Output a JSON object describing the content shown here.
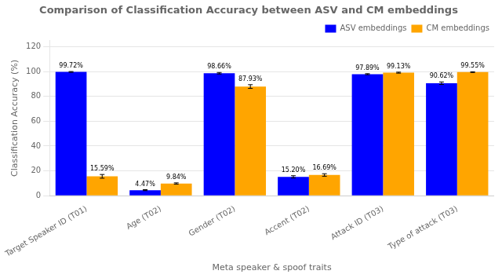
{
  "chart_data": {
    "type": "bar",
    "title": "Comparison of Classification Accuracy between ASV and CM embeddings",
    "xlabel": "Meta speaker & spoof traits",
    "ylabel": "Classification Accuracy (%)",
    "categories": [
      "Target Speaker ID (T01)",
      "Age (T02)",
      "Gender (T02)",
      "Accent (T02)",
      "Attack ID (T03)",
      "Type of attack (T03)"
    ],
    "series": [
      {
        "name": "ASV embeddings",
        "color": "#0000FF",
        "values": [
          99.72,
          4.47,
          98.66,
          15.2,
          97.89,
          90.62
        ],
        "errors": [
          0.3,
          0.4,
          0.6,
          0.9,
          0.4,
          1.0
        ],
        "value_labels": [
          "99.72%",
          "4.47%",
          "98.66%",
          "15.20%",
          "97.89%",
          "90.62%"
        ]
      },
      {
        "name": "CM embeddings",
        "color": "#FFA500",
        "values": [
          15.59,
          9.84,
          87.93,
          16.69,
          99.13,
          99.55
        ],
        "errors": [
          1.5,
          0.5,
          1.5,
          1.0,
          0.4,
          0.3
        ],
        "value_labels": [
          "15.59%",
          "9.84%",
          "87.93%",
          "16.69%",
          "99.13%",
          "99.55%"
        ]
      }
    ],
    "ylim": [
      0,
      125
    ],
    "yticks": [
      0,
      20,
      40,
      60,
      80,
      100,
      120
    ],
    "grid": true,
    "legend": "upper right",
    "data_labels": true
  }
}
